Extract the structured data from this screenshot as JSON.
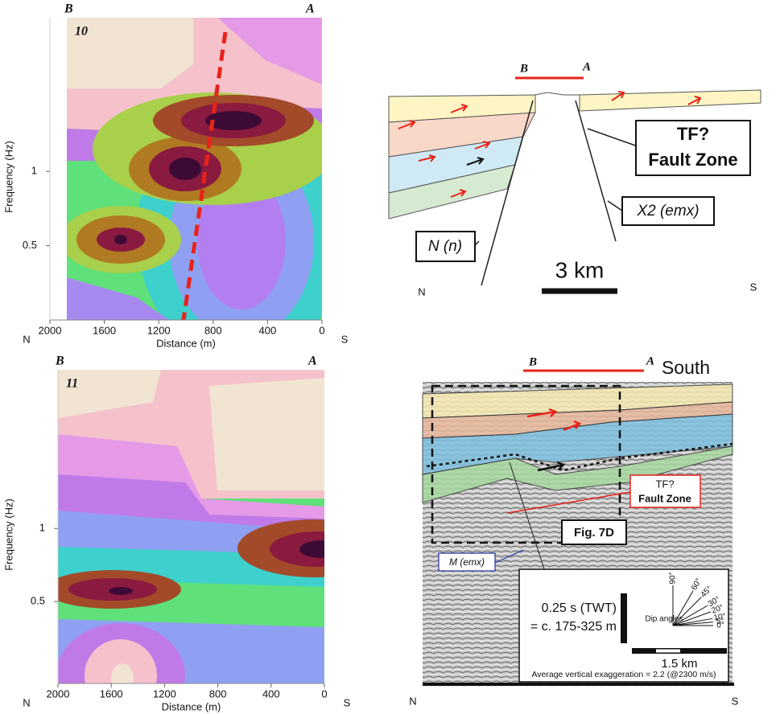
{
  "panels": [
    {
      "corner_left": "B",
      "corner_right": "A",
      "number": "10",
      "ylabel": "Frequency (Hz)",
      "xlabel": "Distance (m)",
      "xlim": [
        2000,
        0
      ],
      "xticks": [
        2000,
        1600,
        1200,
        800,
        400,
        0
      ],
      "ylim": [
        0.25,
        4.2
      ],
      "yticks": [
        1,
        0.5
      ],
      "ylog": true,
      "left": "N",
      "right": "S"
    },
    {
      "corner_left": "B",
      "corner_right": "A",
      "number": "11",
      "ylabel": "Frequency (Hz)",
      "xlabel": "Distance (m)",
      "xlim": [
        2000,
        0
      ],
      "xticks": [
        2000,
        1600,
        1200,
        800,
        400,
        0
      ],
      "ylim": [
        0.23,
        4.5
      ],
      "yticks": [
        1,
        0.5
      ],
      "ylog": true,
      "left": "N",
      "right": "S"
    }
  ],
  "section_top": {
    "left_end": "B",
    "right_end": "A",
    "fault_box": [
      "TF?",
      "Fault Zone"
    ],
    "label_x2": "X2 (emx)",
    "label_n": "N (n)",
    "scale": "3 km",
    "left": "N",
    "right": "S"
  },
  "section_bottom": {
    "left_end": "B",
    "right_end": "A",
    "direction": "South",
    "fault_box": [
      "TF?",
      "Fault Zone"
    ],
    "fig_ref": "Fig. 7D",
    "label_m": "M (emx)",
    "twt": "0.25 s (TWT)",
    "depth": "= c. 175-325 m",
    "dip_title": "Dip angles",
    "dip_angles": [
      "90°",
      "60°",
      "45°",
      "30°",
      "20°",
      "10°",
      "5°",
      "0°"
    ],
    "scale": "1.5 km",
    "exaggeration": "Average vertical exaggeration = 2.2 (@2300 m/s)",
    "left": "N",
    "right": "S"
  }
}
